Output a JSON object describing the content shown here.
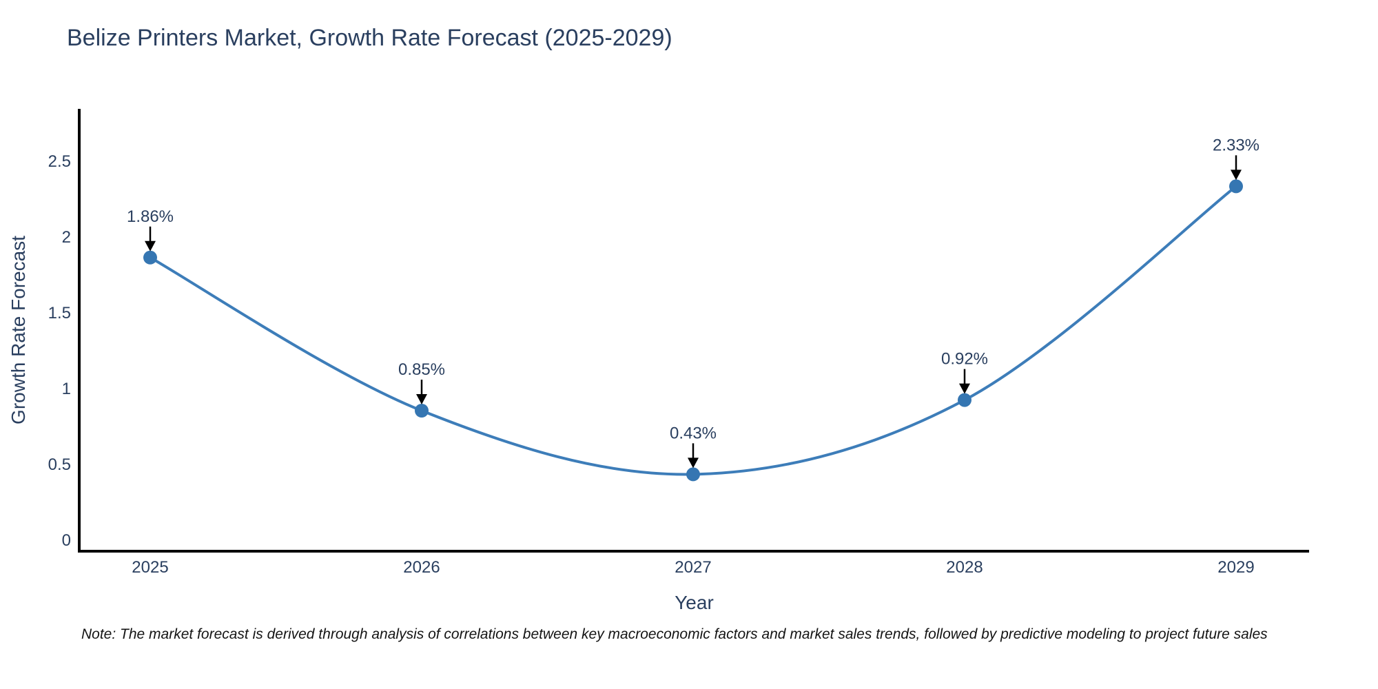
{
  "chart_data": {
    "type": "line",
    "title": "Belize Printers Market, Growth Rate Forecast (2025-2029)",
    "xlabel": "Year",
    "ylabel": "Growth Rate Forecast",
    "x": [
      2025,
      2026,
      2027,
      2028,
      2029
    ],
    "xtick_labels": [
      "2025",
      "2026",
      "2027",
      "2028",
      "2029"
    ],
    "values": [
      1.86,
      0.85,
      0.43,
      0.92,
      2.33
    ],
    "yticks": [
      0,
      0.5,
      1,
      1.5,
      2,
      2.5
    ],
    "ytick_labels": [
      "0",
      "0.5",
      "1",
      "1.5",
      "2",
      "2.5"
    ],
    "ylim": [
      -0.08,
      2.84
    ],
    "xlim": [
      2024.74,
      2029.26
    ],
    "line_shape": "spline",
    "grid": false,
    "legend": "none",
    "annotations": [
      {
        "x": 2025,
        "y": 1.86,
        "label": "1.86%"
      },
      {
        "x": 2026,
        "y": 0.85,
        "label": "0.85%"
      },
      {
        "x": 2027,
        "y": 0.43,
        "label": "0.43%"
      },
      {
        "x": 2028,
        "y": 0.92,
        "label": "0.92%"
      },
      {
        "x": 2029,
        "y": 2.33,
        "label": "2.33%"
      }
    ],
    "colors": {
      "line": "#3d7db9",
      "marker": "#3576b2",
      "text": "#2a3f5f",
      "axis": "#000000",
      "arrow": "#000000",
      "background": "#ffffff"
    }
  },
  "note": "Note: The market forecast is derived through analysis of correlations between key macroeconomic factors and market sales trends, followed by predictive modeling to project future sales"
}
